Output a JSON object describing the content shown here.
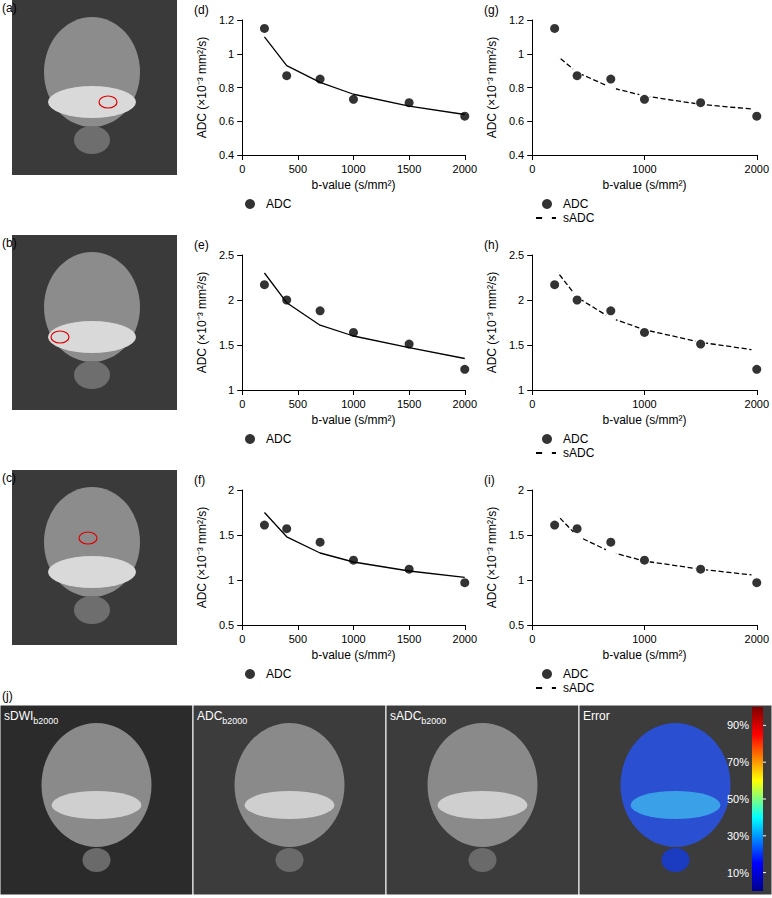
{
  "chart_data": [
    {
      "panel": "(d)",
      "type": "scatter",
      "x": [
        200,
        400,
        700,
        1000,
        1500,
        2000
      ],
      "series": [
        {
          "name": "ADC",
          "type": "scatter",
          "marker": "filled",
          "color": "#000000",
          "values": [
            1.15,
            0.87,
            0.85,
            0.73,
            0.71,
            0.63
          ]
        },
        {
          "type": "line",
          "marker": "none",
          "line_style": "solid",
          "color": "#000000",
          "values": [
            1.1,
            0.93,
            0.83,
            0.76,
            0.69,
            0.64
          ]
        }
      ],
      "xlabel": "b-value (s/mm²)",
      "ylabel": "ADC (×10⁻³ mm²/s)",
      "xlim": [
        0,
        2000
      ],
      "xticks": [
        0,
        500,
        1000,
        1500,
        2000
      ],
      "ylim": [
        0.4,
        1.2
      ],
      "yticks": [
        0.4,
        0.6,
        0.8,
        1,
        1.2
      ],
      "grid": false,
      "legend": "bottom left"
    },
    {
      "panel": "(e)",
      "type": "scatter",
      "x": [
        200,
        400,
        700,
        1000,
        1500,
        2000
      ],
      "series": [
        {
          "name": "ADC",
          "type": "scatter",
          "marker": "filled",
          "color": "#000000",
          "values": [
            2.17,
            2.0,
            1.88,
            1.64,
            1.51,
            1.23
          ]
        },
        {
          "type": "line",
          "marker": "none",
          "line_style": "solid",
          "color": "#000000",
          "values": [
            2.3,
            1.97,
            1.72,
            1.6,
            1.47,
            1.35
          ]
        }
      ],
      "xlabel": "b-value (s/mm²)",
      "ylabel": "ADC (×10⁻³ mm²/s)",
      "xlim": [
        0,
        2000
      ],
      "xticks": [
        0,
        500,
        1000,
        1500,
        2000
      ],
      "ylim": [
        1,
        2.5
      ],
      "yticks": [
        1,
        1.5,
        2,
        2.5
      ],
      "grid": false,
      "legend": "bottom left"
    },
    {
      "panel": "(f)",
      "type": "scatter",
      "x": [
        200,
        400,
        700,
        1000,
        1500,
        2000
      ],
      "series": [
        {
          "name": "ADC",
          "type": "scatter",
          "marker": "filled",
          "color": "#000000",
          "values": [
            1.61,
            1.57,
            1.42,
            1.22,
            1.12,
            0.97
          ]
        },
        {
          "type": "line",
          "marker": "none",
          "line_style": "solid",
          "color": "#000000",
          "values": [
            1.75,
            1.48,
            1.3,
            1.2,
            1.1,
            1.03
          ]
        }
      ],
      "xlabel": "b-value (s/mm²)",
      "ylabel": "ADC (×10⁻³ mm²/s)",
      "xlim": [
        0,
        2000
      ],
      "xticks": [
        0,
        500,
        1000,
        1500,
        2000
      ],
      "ylim": [
        0.5,
        2
      ],
      "yticks": [
        0.5,
        1,
        1.5,
        2
      ],
      "grid": false,
      "legend": "bottom left"
    },
    {
      "panel": "(g)",
      "type": "scatter",
      "x": [
        200,
        400,
        700,
        1000,
        1500,
        2000
      ],
      "series": [
        {
          "name": "ADC",
          "type": "scatter",
          "marker": "filled",
          "color": "#000000",
          "values": [
            1.15,
            0.87,
            0.85,
            0.73,
            0.71,
            0.63
          ]
        },
        {
          "name": "sADC",
          "type": "line",
          "marker": "open",
          "line_style": "dashed",
          "color": "#000000",
          "values": [
            1.0,
            0.89,
            0.8,
            0.75,
            0.7,
            0.67
          ]
        }
      ],
      "xlabel": "b-value (s/mm²)",
      "ylabel": "ADC (×10⁻³ mm²/s)",
      "xlim": [
        0,
        2000
      ],
      "xticks": [
        0,
        1000,
        2000
      ],
      "ylim": [
        0.4,
        1.2
      ],
      "yticks": [
        0.4,
        0.6,
        0.8,
        1,
        1.2
      ],
      "grid": false,
      "legend": "bottom left"
    },
    {
      "panel": "(h)",
      "type": "scatter",
      "x": [
        200,
        400,
        700,
        1000,
        1500,
        2000
      ],
      "series": [
        {
          "name": "ADC",
          "type": "scatter",
          "marker": "filled",
          "color": "#000000",
          "values": [
            2.17,
            2.0,
            1.88,
            1.64,
            1.51,
            1.23
          ]
        },
        {
          "name": "sADC",
          "type": "line",
          "marker": "open",
          "line_style": "dashed",
          "color": "#000000",
          "values": [
            2.35,
            2.03,
            1.8,
            1.67,
            1.53,
            1.44
          ]
        }
      ],
      "xlabel": "b-value (s/mm²)",
      "ylabel": "ADC (×10⁻³ mm²/s)",
      "xlim": [
        0,
        2000
      ],
      "xticks": [
        0,
        1000,
        2000
      ],
      "ylim": [
        1,
        2.5
      ],
      "yticks": [
        1,
        1.5,
        2,
        2.5
      ],
      "grid": false,
      "legend": "bottom left"
    },
    {
      "panel": "(i)",
      "type": "scatter",
      "x": [
        200,
        400,
        700,
        1000,
        1500,
        2000
      ],
      "series": [
        {
          "name": "ADC",
          "type": "scatter",
          "marker": "filled",
          "color": "#000000",
          "values": [
            1.61,
            1.57,
            1.42,
            1.22,
            1.12,
            0.97
          ]
        },
        {
          "name": "sADC",
          "type": "line",
          "marker": "open",
          "line_style": "dashed",
          "color": "#000000",
          "values": [
            1.75,
            1.49,
            1.31,
            1.21,
            1.12,
            1.05
          ]
        }
      ],
      "xlabel": "b-value (s/mm²)",
      "ylabel": "ADC (×10⁻³ mm²/s)",
      "xlim": [
        0,
        2000
      ],
      "xticks": [
        0,
        1000,
        2000
      ],
      "ylim": [
        0.5,
        2
      ],
      "yticks": [
        0.5,
        1,
        1.5,
        2
      ],
      "grid": false,
      "legend": "bottom left"
    }
  ],
  "images": [
    {
      "panel": "(a)"
    },
    {
      "panel": "(b)"
    },
    {
      "panel": "(c)"
    }
  ],
  "maps": {
    "panel": "(j)",
    "images": [
      {
        "label": "sDWI",
        "subscript": "b2000"
      },
      {
        "label": "ADC",
        "subscript": "b2000"
      },
      {
        "label": "sADC",
        "subscript": "b2000"
      },
      {
        "label": "Error"
      }
    ],
    "colorbar": {
      "range": [
        0,
        100
      ],
      "ticks": [
        {
          "value": 10,
          "label": "10%"
        },
        {
          "value": 30,
          "label": "30%"
        },
        {
          "value": 50,
          "label": "50%"
        },
        {
          "value": 70,
          "label": "70%"
        },
        {
          "value": 90,
          "label": "90%"
        }
      ]
    }
  }
}
